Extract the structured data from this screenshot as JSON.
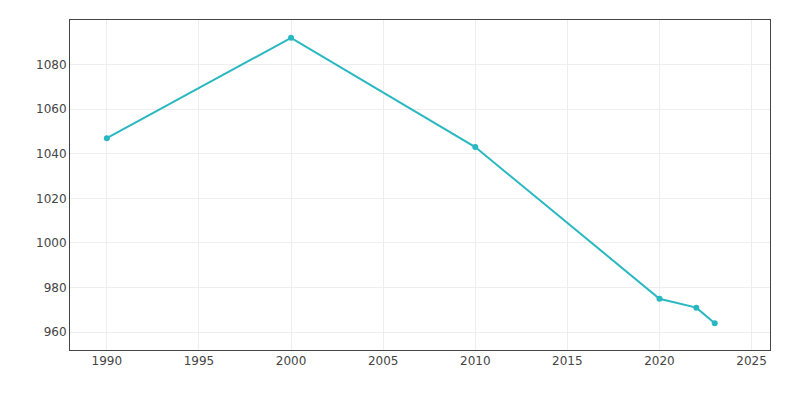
{
  "chart_data": {
    "type": "line",
    "x": [
      1990,
      2000,
      2010,
      2020,
      2022,
      2023
    ],
    "values": [
      1047,
      1092,
      1043,
      975,
      971,
      964
    ],
    "color": "#29B8C2",
    "marker": "circle",
    "xlim": [
      1988,
      2026
    ],
    "ylim": [
      952,
      1100
    ],
    "xticks": [
      1990,
      1995,
      2000,
      2005,
      2010,
      2015,
      2020,
      2025
    ],
    "yticks": [
      960,
      980,
      1000,
      1020,
      1040,
      1060,
      1080
    ],
    "grid": true
  }
}
